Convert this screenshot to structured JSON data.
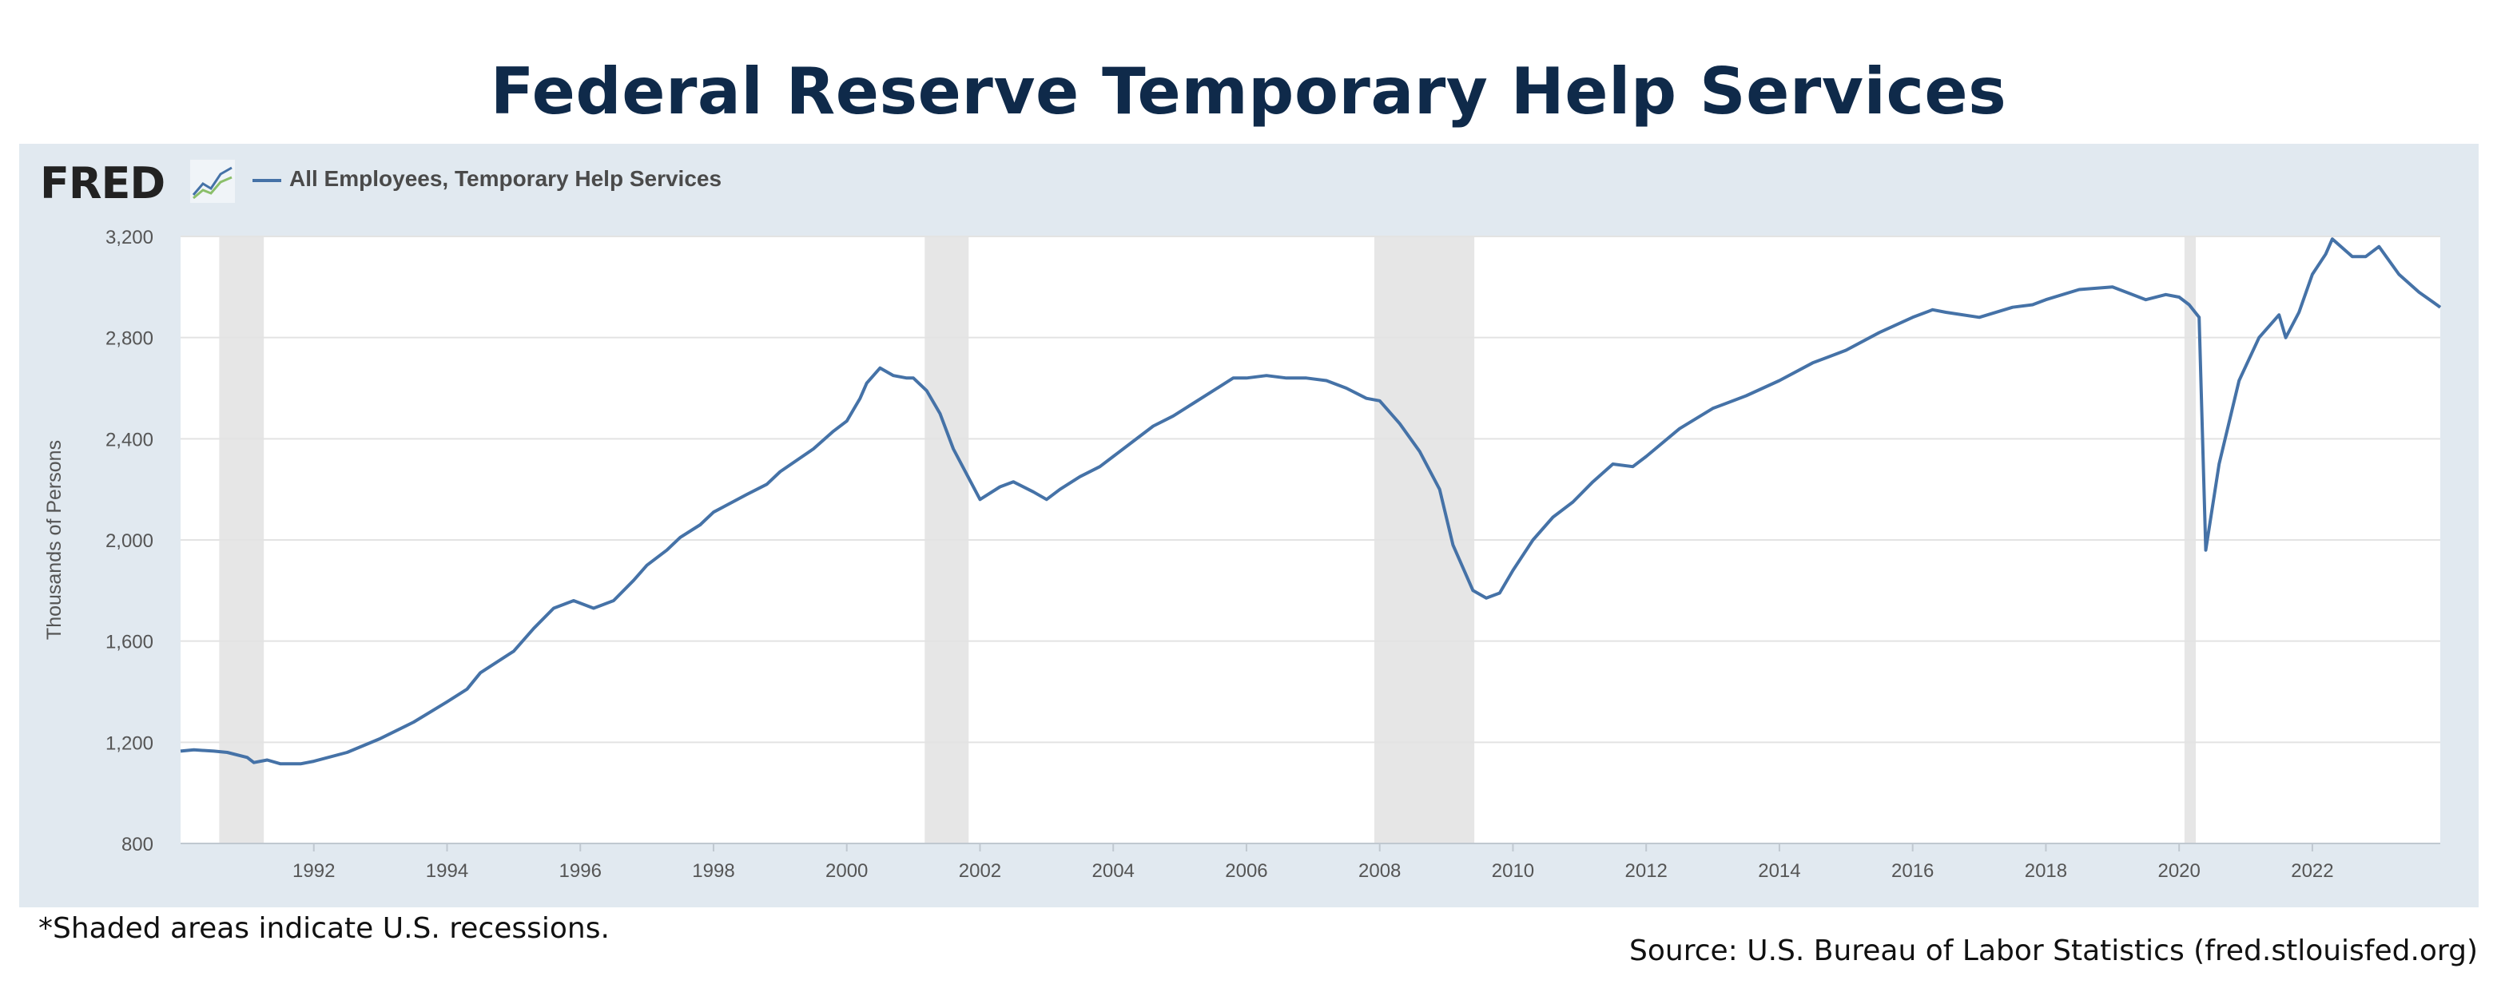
{
  "title": "Federal Reserve Temporary Help Services",
  "logo_text": "FRED",
  "footnote": "*Shaded areas indicate U.S. recessions.",
  "source": "Source: U.S. Bureau of Labor Statistics (fred.stlouisfed.org)",
  "colors": {
    "line": "#4572a7",
    "recession": "#e6e6e6",
    "panel": "#e1e9f0",
    "title": "#0f2a4a"
  },
  "chart_data": {
    "type": "line",
    "ylabel": "Thousands of Persons",
    "xlim": [
      1990.0,
      2023.92
    ],
    "ylim": [
      800,
      3200
    ],
    "y_ticks": [
      800,
      1200,
      1600,
      2000,
      2400,
      2800,
      3200
    ],
    "y_tick_labels": [
      "800",
      "1,200",
      "1,600",
      "2,000",
      "2,400",
      "2,800",
      "3,200"
    ],
    "x_ticks": [
      1992,
      1994,
      1996,
      1998,
      2000,
      2002,
      2004,
      2006,
      2008,
      2010,
      2012,
      2014,
      2016,
      2018,
      2020,
      2022
    ],
    "x_tick_labels": [
      "1992",
      "1994",
      "1996",
      "1998",
      "2000",
      "2002",
      "2004",
      "2006",
      "2008",
      "2010",
      "2012",
      "2014",
      "2016",
      "2018",
      "2020",
      "2022"
    ],
    "grid": true,
    "legend_position": "top-left",
    "recessions": [
      [
        1990.58,
        1991.25
      ],
      [
        2001.17,
        2001.83
      ],
      [
        2007.92,
        2009.42
      ],
      [
        2020.08,
        2020.25
      ]
    ],
    "series": [
      {
        "name": "All Employees, Temporary Help Services",
        "x": [
          1990.0,
          1990.2,
          1990.5,
          1990.7,
          1991.0,
          1991.1,
          1991.3,
          1991.5,
          1991.8,
          1992.0,
          1992.5,
          1993.0,
          1993.5,
          1994.0,
          1994.3,
          1994.5,
          1995.0,
          1995.3,
          1995.6,
          1995.9,
          1996.2,
          1996.5,
          1996.8,
          1997.0,
          1997.3,
          1997.5,
          1997.8,
          1998.0,
          1998.5,
          1998.8,
          1999.0,
          1999.5,
          1999.8,
          2000.0,
          2000.2,
          2000.3,
          2000.5,
          2000.7,
          2000.9,
          2001.0,
          2001.2,
          2001.4,
          2001.6,
          2001.8,
          2002.0,
          2002.3,
          2002.5,
          2002.8,
          2003.0,
          2003.2,
          2003.5,
          2003.8,
          2004.0,
          2004.3,
          2004.6,
          2004.9,
          2005.2,
          2005.5,
          2005.8,
          2006.0,
          2006.3,
          2006.6,
          2006.9,
          2007.2,
          2007.5,
          2007.8,
          2008.0,
          2008.3,
          2008.6,
          2008.9,
          2009.1,
          2009.4,
          2009.6,
          2009.8,
          2010.0,
          2010.3,
          2010.6,
          2010.9,
          2011.2,
          2011.5,
          2011.8,
          2012.0,
          2012.5,
          2013.0,
          2013.5,
          2014.0,
          2014.5,
          2015.0,
          2015.5,
          2016.0,
          2016.3,
          2016.5,
          2017.0,
          2017.5,
          2017.8,
          2018.0,
          2018.5,
          2019.0,
          2019.5,
          2019.8,
          2020.0,
          2020.15,
          2020.3,
          2020.4,
          2020.6,
          2020.9,
          2021.2,
          2021.5,
          2021.6,
          2021.8,
          2022.0,
          2022.2,
          2022.3,
          2022.6,
          2022.8,
          2023.0,
          2023.3,
          2023.6,
          2023.92
        ],
        "values": [
          1165,
          1170,
          1165,
          1160,
          1140,
          1120,
          1130,
          1115,
          1115,
          1125,
          1160,
          1215,
          1280,
          1360,
          1410,
          1475,
          1560,
          1650,
          1730,
          1760,
          1730,
          1760,
          1840,
          1900,
          1960,
          2010,
          2060,
          2110,
          2180,
          2220,
          2270,
          2360,
          2430,
          2470,
          2560,
          2620,
          2680,
          2650,
          2640,
          2640,
          2590,
          2500,
          2360,
          2260,
          2160,
          2210,
          2230,
          2190,
          2160,
          2200,
          2250,
          2290,
          2330,
          2390,
          2450,
          2490,
          2540,
          2590,
          2640,
          2640,
          2650,
          2640,
          2640,
          2630,
          2600,
          2560,
          2550,
          2460,
          2350,
          2200,
          1980,
          1800,
          1770,
          1790,
          1880,
          2000,
          2090,
          2150,
          2230,
          2300,
          2290,
          2330,
          2440,
          2520,
          2570,
          2630,
          2700,
          2750,
          2820,
          2880,
          2910,
          2900,
          2880,
          2920,
          2930,
          2950,
          2990,
          3000,
          2950,
          2970,
          2960,
          2930,
          2880,
          1960,
          2300,
          2630,
          2800,
          2890,
          2800,
          2900,
          3050,
          3130,
          3190,
          3120,
          3120,
          3160,
          3050,
          2980,
          2920
        ]
      }
    ]
  }
}
